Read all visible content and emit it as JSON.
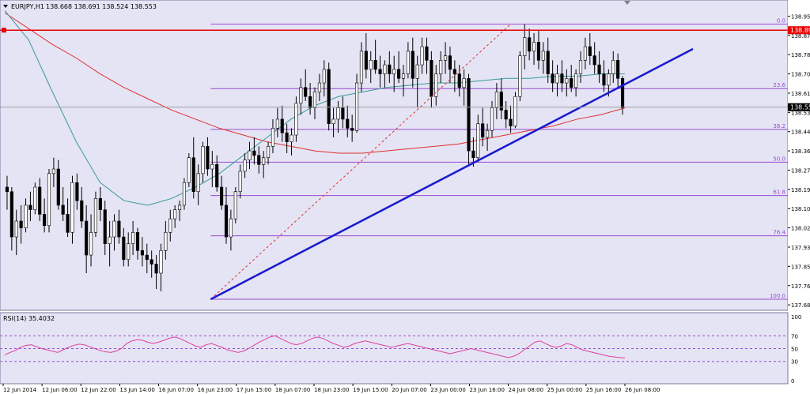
{
  "chart_data": [
    {
      "type": "candlestick",
      "title": "EURJPY,H1",
      "ohlc_header": "138.668 138.691 138.524 138.553",
      "price_axis": {
        "ticks": [
          "138.955",
          "138.870",
          "138.785",
          "138.700",
          "138.615",
          "138.530",
          "138.445",
          "138.360",
          "138.275",
          "138.190",
          "138.105",
          "138.020",
          "137.935",
          "137.850",
          "137.765",
          "137.680"
        ],
        "ylim": [
          137.67,
          138.96
        ]
      },
      "time_axis": [
        "12 Jun 2014",
        "12 Jun 06:00",
        "12 Jun 22:00",
        "13 Jun 14:00",
        "16 Jun 07:00",
        "16 Jun 23:00",
        "17 Jun 15:00",
        "18 Jun 07:00",
        "18 Jun 23:00",
        "19 Jun 15:00",
        "20 Jun 07:00",
        "23 Jun 00:00",
        "23 Jun 16:00",
        "24 Jun 08:00",
        "25 Jun 00:00",
        "25 Jun 16:00",
        "26 Jun 08:00"
      ],
      "current_price": "138.553",
      "hline_price": "138.893",
      "fibonacci": {
        "levels": [
          {
            "label": "0.0",
            "price": 138.92
          },
          {
            "label": "23.6",
            "price": 138.635
          },
          {
            "label": "38.2",
            "price": 138.455
          },
          {
            "label": "50.0",
            "price": 138.31
          },
          {
            "label": "61.8",
            "price": 138.163
          },
          {
            "label": "76.4",
            "price": 137.985
          },
          {
            "label": "100.0",
            "price": 137.705
          }
        ],
        "start_price": 137.705,
        "end_price": 138.92
      },
      "trendline": {
        "from_price": 137.705,
        "to_price": 138.81
      },
      "candles": [
        {
          "o": 138.2,
          "h": 138.25,
          "l": 138.1,
          "c": 138.18
        },
        {
          "o": 138.18,
          "h": 138.2,
          "l": 137.92,
          "c": 137.98
        },
        {
          "o": 137.98,
          "h": 138.1,
          "l": 137.9,
          "c": 138.05
        },
        {
          "o": 138.05,
          "h": 138.12,
          "l": 137.95,
          "c": 138.02
        },
        {
          "o": 138.02,
          "h": 138.15,
          "l": 138.0,
          "c": 138.12
        },
        {
          "o": 138.12,
          "h": 138.18,
          "l": 138.05,
          "c": 138.1
        },
        {
          "o": 138.1,
          "h": 138.22,
          "l": 138.08,
          "c": 138.2
        },
        {
          "o": 138.2,
          "h": 138.24,
          "l": 138.05,
          "c": 138.08
        },
        {
          "o": 138.08,
          "h": 138.15,
          "l": 138.0,
          "c": 138.03
        },
        {
          "o": 138.03,
          "h": 138.28,
          "l": 138.0,
          "c": 138.26
        },
        {
          "o": 138.26,
          "h": 138.33,
          "l": 138.2,
          "c": 138.28
        },
        {
          "o": 138.28,
          "h": 138.32,
          "l": 138.1,
          "c": 138.12
        },
        {
          "o": 138.12,
          "h": 138.2,
          "l": 138.05,
          "c": 138.08
        },
        {
          "o": 138.08,
          "h": 138.15,
          "l": 137.98,
          "c": 138.0
        },
        {
          "o": 138.0,
          "h": 138.25,
          "l": 137.95,
          "c": 138.22
        },
        {
          "o": 138.22,
          "h": 138.26,
          "l": 138.1,
          "c": 138.14
        },
        {
          "o": 138.14,
          "h": 138.2,
          "l": 138.02,
          "c": 138.05
        },
        {
          "o": 138.05,
          "h": 138.12,
          "l": 137.82,
          "c": 137.9
        },
        {
          "o": 137.9,
          "h": 138.08,
          "l": 137.85,
          "c": 138.0
        },
        {
          "o": 138.0,
          "h": 138.18,
          "l": 137.98,
          "c": 138.15
        },
        {
          "o": 138.15,
          "h": 138.2,
          "l": 138.05,
          "c": 138.1
        },
        {
          "o": 138.1,
          "h": 138.14,
          "l": 137.9,
          "c": 137.95
        },
        {
          "o": 137.95,
          "h": 138.05,
          "l": 137.85,
          "c": 137.98
        },
        {
          "o": 137.98,
          "h": 138.08,
          "l": 137.92,
          "c": 138.05
        },
        {
          "o": 138.05,
          "h": 138.1,
          "l": 137.95,
          "c": 137.98
        },
        {
          "o": 137.98,
          "h": 138.02,
          "l": 137.85,
          "c": 137.88
        },
        {
          "o": 137.88,
          "h": 138.0,
          "l": 137.85,
          "c": 137.95
        },
        {
          "o": 137.95,
          "h": 138.05,
          "l": 137.9,
          "c": 138.0
        },
        {
          "o": 138.0,
          "h": 138.02,
          "l": 137.88,
          "c": 137.92
        },
        {
          "o": 137.92,
          "h": 137.98,
          "l": 137.85,
          "c": 137.9
        },
        {
          "o": 137.9,
          "h": 137.95,
          "l": 137.82,
          "c": 137.88
        },
        {
          "o": 137.88,
          "h": 137.92,
          "l": 137.8,
          "c": 137.86
        },
        {
          "o": 137.86,
          "h": 137.9,
          "l": 137.75,
          "c": 137.82
        },
        {
          "o": 137.82,
          "h": 137.95,
          "l": 137.74,
          "c": 137.92
        },
        {
          "o": 137.92,
          "h": 138.05,
          "l": 137.88,
          "c": 138.0
        },
        {
          "o": 138.0,
          "h": 138.1,
          "l": 137.96,
          "c": 138.06
        },
        {
          "o": 138.06,
          "h": 138.12,
          "l": 138.02,
          "c": 138.1
        },
        {
          "o": 138.1,
          "h": 138.14,
          "l": 138.05,
          "c": 138.12
        },
        {
          "o": 138.12,
          "h": 138.24,
          "l": 138.1,
          "c": 138.22
        },
        {
          "o": 138.22,
          "h": 138.35,
          "l": 138.2,
          "c": 138.33
        },
        {
          "o": 138.33,
          "h": 138.42,
          "l": 138.15,
          "c": 138.18
        },
        {
          "o": 138.18,
          "h": 138.3,
          "l": 138.12,
          "c": 138.26
        },
        {
          "o": 138.26,
          "h": 138.4,
          "l": 138.22,
          "c": 138.38
        },
        {
          "o": 138.38,
          "h": 138.42,
          "l": 138.25,
          "c": 138.28
        },
        {
          "o": 138.28,
          "h": 138.36,
          "l": 138.2,
          "c": 138.3
        },
        {
          "o": 138.3,
          "h": 138.34,
          "l": 138.18,
          "c": 138.2
        },
        {
          "o": 138.2,
          "h": 138.25,
          "l": 138.1,
          "c": 138.12
        },
        {
          "o": 138.12,
          "h": 138.2,
          "l": 137.95,
          "c": 137.98
        },
        {
          "o": 137.98,
          "h": 138.1,
          "l": 137.92,
          "c": 138.06
        },
        {
          "o": 138.06,
          "h": 138.2,
          "l": 138.04,
          "c": 138.18
        },
        {
          "o": 138.18,
          "h": 138.3,
          "l": 138.15,
          "c": 138.27
        },
        {
          "o": 138.27,
          "h": 138.35,
          "l": 138.24,
          "c": 138.32
        },
        {
          "o": 138.32,
          "h": 138.4,
          "l": 138.28,
          "c": 138.36
        },
        {
          "o": 138.36,
          "h": 138.42,
          "l": 138.3,
          "c": 138.34
        },
        {
          "o": 138.34,
          "h": 138.38,
          "l": 138.26,
          "c": 138.3
        },
        {
          "o": 138.3,
          "h": 138.36,
          "l": 138.24,
          "c": 138.33
        },
        {
          "o": 138.33,
          "h": 138.4,
          "l": 138.3,
          "c": 138.38
        },
        {
          "o": 138.38,
          "h": 138.5,
          "l": 138.35,
          "c": 138.46
        },
        {
          "o": 138.46,
          "h": 138.55,
          "l": 138.42,
          "c": 138.5
        },
        {
          "o": 138.5,
          "h": 138.56,
          "l": 138.4,
          "c": 138.44
        },
        {
          "o": 138.44,
          "h": 138.48,
          "l": 138.35,
          "c": 138.4
        },
        {
          "o": 138.4,
          "h": 138.46,
          "l": 138.34,
          "c": 138.43
        },
        {
          "o": 138.43,
          "h": 138.6,
          "l": 138.4,
          "c": 138.57
        },
        {
          "o": 138.57,
          "h": 138.68,
          "l": 138.52,
          "c": 138.64
        },
        {
          "o": 138.64,
          "h": 138.72,
          "l": 138.58,
          "c": 138.6
        },
        {
          "o": 138.6,
          "h": 138.66,
          "l": 138.52,
          "c": 138.55
        },
        {
          "o": 138.55,
          "h": 138.64,
          "l": 138.5,
          "c": 138.62
        },
        {
          "o": 138.62,
          "h": 138.7,
          "l": 138.58,
          "c": 138.66
        },
        {
          "o": 138.66,
          "h": 138.76,
          "l": 138.6,
          "c": 138.72
        },
        {
          "o": 138.72,
          "h": 138.75,
          "l": 138.45,
          "c": 138.48
        },
        {
          "o": 138.48,
          "h": 138.55,
          "l": 138.42,
          "c": 138.5
        },
        {
          "o": 138.5,
          "h": 138.58,
          "l": 138.44,
          "c": 138.55
        },
        {
          "o": 138.55,
          "h": 138.6,
          "l": 138.46,
          "c": 138.5
        },
        {
          "o": 138.5,
          "h": 138.56,
          "l": 138.42,
          "c": 138.46
        },
        {
          "o": 138.46,
          "h": 138.52,
          "l": 138.4,
          "c": 138.45
        },
        {
          "o": 138.45,
          "h": 138.7,
          "l": 138.44,
          "c": 138.66
        },
        {
          "o": 138.66,
          "h": 138.84,
          "l": 138.62,
          "c": 138.8
        },
        {
          "o": 138.8,
          "h": 138.88,
          "l": 138.68,
          "c": 138.72
        },
        {
          "o": 138.72,
          "h": 138.8,
          "l": 138.66,
          "c": 138.76
        },
        {
          "o": 138.76,
          "h": 138.85,
          "l": 138.7,
          "c": 138.72
        },
        {
          "o": 138.72,
          "h": 138.78,
          "l": 138.64,
          "c": 138.7
        },
        {
          "o": 138.7,
          "h": 138.76,
          "l": 138.64,
          "c": 138.74
        },
        {
          "o": 138.74,
          "h": 138.8,
          "l": 138.66,
          "c": 138.7
        },
        {
          "o": 138.7,
          "h": 138.78,
          "l": 138.62,
          "c": 138.72
        },
        {
          "o": 138.72,
          "h": 138.8,
          "l": 138.66,
          "c": 138.68
        },
        {
          "o": 138.68,
          "h": 138.74,
          "l": 138.6,
          "c": 138.7
        },
        {
          "o": 138.7,
          "h": 138.84,
          "l": 138.68,
          "c": 138.8
        },
        {
          "o": 138.8,
          "h": 138.86,
          "l": 138.64,
          "c": 138.68
        },
        {
          "o": 138.68,
          "h": 138.78,
          "l": 138.55,
          "c": 138.74
        },
        {
          "o": 138.74,
          "h": 138.86,
          "l": 138.7,
          "c": 138.82
        },
        {
          "o": 138.82,
          "h": 138.86,
          "l": 138.7,
          "c": 138.76
        },
        {
          "o": 138.76,
          "h": 138.8,
          "l": 138.55,
          "c": 138.6
        },
        {
          "o": 138.6,
          "h": 138.74,
          "l": 138.56,
          "c": 138.7
        },
        {
          "o": 138.7,
          "h": 138.8,
          "l": 138.66,
          "c": 138.76
        },
        {
          "o": 138.76,
          "h": 138.84,
          "l": 138.7,
          "c": 138.78
        },
        {
          "o": 138.78,
          "h": 138.82,
          "l": 138.66,
          "c": 138.72
        },
        {
          "o": 138.72,
          "h": 138.76,
          "l": 138.62,
          "c": 138.7
        },
        {
          "o": 138.7,
          "h": 138.74,
          "l": 138.6,
          "c": 138.64
        },
        {
          "o": 138.64,
          "h": 138.72,
          "l": 138.56,
          "c": 138.68
        },
        {
          "o": 138.68,
          "h": 138.7,
          "l": 138.3,
          "c": 138.36
        },
        {
          "o": 138.36,
          "h": 138.42,
          "l": 138.29,
          "c": 138.33
        },
        {
          "o": 138.33,
          "h": 138.52,
          "l": 138.31,
          "c": 138.48
        },
        {
          "o": 138.48,
          "h": 138.55,
          "l": 138.38,
          "c": 138.42
        },
        {
          "o": 138.42,
          "h": 138.48,
          "l": 138.36,
          "c": 138.45
        },
        {
          "o": 138.45,
          "h": 138.58,
          "l": 138.42,
          "c": 138.55
        },
        {
          "o": 138.55,
          "h": 138.66,
          "l": 138.5,
          "c": 138.62
        },
        {
          "o": 138.62,
          "h": 138.68,
          "l": 138.5,
          "c": 138.54
        },
        {
          "o": 138.54,
          "h": 138.58,
          "l": 138.46,
          "c": 138.5
        },
        {
          "o": 138.5,
          "h": 138.56,
          "l": 138.44,
          "c": 138.47
        },
        {
          "o": 138.47,
          "h": 138.62,
          "l": 138.46,
          "c": 138.6
        },
        {
          "o": 138.6,
          "h": 138.8,
          "l": 138.58,
          "c": 138.78
        },
        {
          "o": 138.78,
          "h": 138.92,
          "l": 138.72,
          "c": 138.86
        },
        {
          "o": 138.86,
          "h": 138.9,
          "l": 138.76,
          "c": 138.8
        },
        {
          "o": 138.8,
          "h": 138.88,
          "l": 138.74,
          "c": 138.84
        },
        {
          "o": 138.84,
          "h": 138.89,
          "l": 138.72,
          "c": 138.76
        },
        {
          "o": 138.76,
          "h": 138.84,
          "l": 138.7,
          "c": 138.8
        },
        {
          "o": 138.8,
          "h": 138.86,
          "l": 138.66,
          "c": 138.7
        },
        {
          "o": 138.7,
          "h": 138.76,
          "l": 138.62,
          "c": 138.66
        },
        {
          "o": 138.66,
          "h": 138.74,
          "l": 138.6,
          "c": 138.7
        },
        {
          "o": 138.7,
          "h": 138.76,
          "l": 138.62,
          "c": 138.66
        },
        {
          "o": 138.66,
          "h": 138.72,
          "l": 138.6,
          "c": 138.68
        },
        {
          "o": 138.68,
          "h": 138.74,
          "l": 138.62,
          "c": 138.64
        },
        {
          "o": 138.64,
          "h": 138.72,
          "l": 138.6,
          "c": 138.7
        },
        {
          "o": 138.7,
          "h": 138.8,
          "l": 138.66,
          "c": 138.76
        },
        {
          "o": 138.76,
          "h": 138.86,
          "l": 138.72,
          "c": 138.82
        },
        {
          "o": 138.82,
          "h": 138.88,
          "l": 138.74,
          "c": 138.78
        },
        {
          "o": 138.78,
          "h": 138.84,
          "l": 138.7,
          "c": 138.74
        },
        {
          "o": 138.74,
          "h": 138.8,
          "l": 138.66,
          "c": 138.7
        },
        {
          "o": 138.7,
          "h": 138.76,
          "l": 138.62,
          "c": 138.65
        },
        {
          "o": 138.65,
          "h": 138.72,
          "l": 138.6,
          "c": 138.7
        },
        {
          "o": 138.7,
          "h": 138.8,
          "l": 138.66,
          "c": 138.76
        },
        {
          "o": 138.76,
          "h": 138.79,
          "l": 138.64,
          "c": 138.68
        },
        {
          "o": 138.68,
          "h": 138.69,
          "l": 138.52,
          "c": 138.55
        }
      ],
      "moving_averages": [
        {
          "name": "MA slow",
          "color": "#e03030",
          "points": [
            138.97,
            138.9,
            138.83,
            138.77,
            138.7,
            138.64,
            138.59,
            138.54,
            138.5,
            138.46,
            138.43,
            138.4,
            138.38,
            138.36,
            138.35,
            138.35,
            138.36,
            138.37,
            138.38,
            138.39,
            138.41,
            138.43,
            138.45,
            138.47,
            138.5,
            138.52,
            138.55
          ]
        },
        {
          "name": "MA fast",
          "color": "#3a9a9a",
          "points": [
            138.98,
            138.85,
            138.62,
            138.4,
            138.22,
            138.14,
            138.12,
            138.15,
            138.2,
            138.26,
            138.34,
            138.42,
            138.5,
            138.56,
            138.6,
            138.62,
            138.64,
            138.65,
            138.66,
            138.66,
            138.67,
            138.68,
            138.68,
            138.69,
            138.69,
            138.7,
            138.7
          ]
        }
      ]
    },
    {
      "type": "line",
      "title": "RSI(14) 35.4032",
      "yticks": [
        "100",
        "70",
        "50",
        "30",
        "0"
      ],
      "levels": [
        70,
        50,
        30
      ],
      "ylim": [
        0,
        100
      ],
      "values": [
        40,
        44,
        47,
        52,
        55,
        56,
        53,
        50,
        48,
        46,
        44,
        48,
        52,
        55,
        57,
        56,
        53,
        50,
        47,
        45,
        44,
        46,
        50,
        58,
        62,
        64,
        63,
        60,
        58,
        60,
        63,
        66,
        68,
        66,
        62,
        58,
        54,
        52,
        56,
        58,
        55,
        52,
        48,
        46,
        44,
        46,
        50,
        55,
        60,
        64,
        68,
        70,
        66,
        62,
        58,
        56,
        58,
        62,
        66,
        68,
        66,
        62,
        58,
        55,
        52,
        54,
        58,
        60,
        62,
        60,
        58,
        56,
        54,
        52,
        54,
        56,
        58,
        56,
        54,
        52,
        50,
        48,
        46,
        44,
        42,
        44,
        46,
        48,
        50,
        48,
        46,
        44,
        42,
        40,
        38,
        36,
        38,
        42,
        48,
        54,
        60,
        62,
        58,
        54,
        52,
        54,
        58,
        56,
        52,
        48,
        46,
        44,
        42,
        40,
        38,
        37,
        36,
        35.4
      ]
    }
  ]
}
